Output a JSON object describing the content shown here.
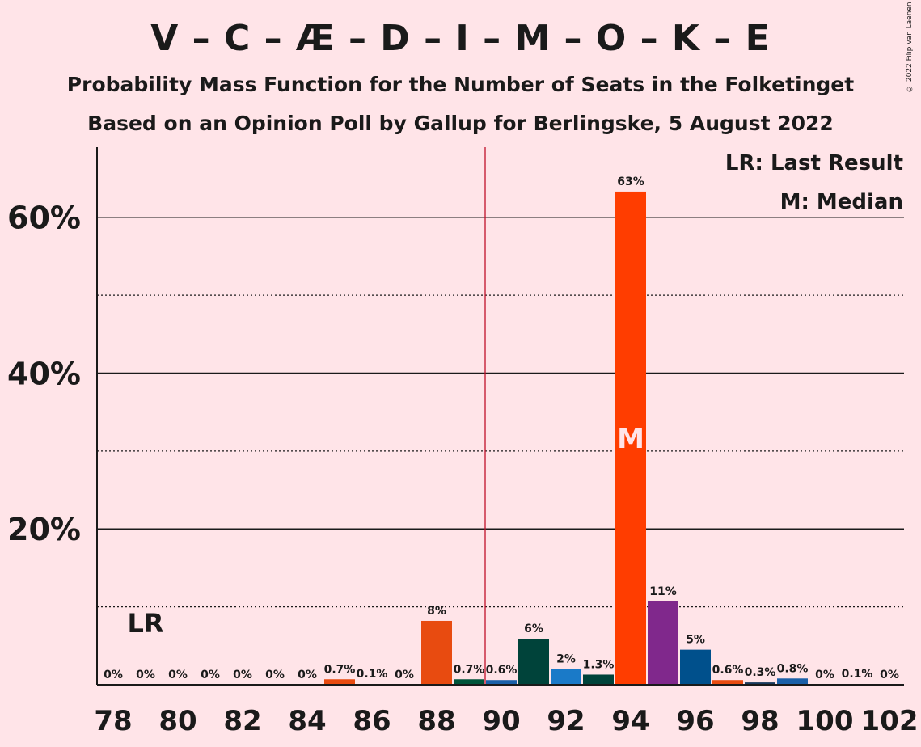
{
  "title": "V – C – Æ – D – I – M – O – K – E",
  "subtitle": "Probability Mass Function for the Number of Seats in the Folketinget",
  "subtitle2": "Based on an Opinion Poll by Gallup for Berlingske, 5 August 2022",
  "copyright": "© 2022 Filip van Laenen",
  "legend": {
    "last_result": "LR: Last Result",
    "median": "M: Median"
  },
  "markers": {
    "last_result_label": "LR",
    "median_label": "M"
  },
  "chart_data": {
    "type": "bar",
    "x": [
      78,
      79,
      80,
      81,
      82,
      83,
      84,
      85,
      86,
      87,
      88,
      89,
      90,
      91,
      92,
      93,
      94,
      95,
      96,
      97,
      98,
      99,
      100,
      101,
      102
    ],
    "values": [
      0,
      0,
      0,
      0,
      0,
      0,
      0,
      0.7,
      0.1,
      0,
      8.2,
      0.7,
      0.6,
      5.9,
      2.0,
      1.3,
      63.3,
      10.7,
      4.5,
      0.6,
      0.3,
      0.8,
      0,
      0.1,
      0
    ],
    "labels": [
      "0%",
      "0%",
      "0%",
      "0%",
      "0%",
      "0%",
      "0%",
      "0.7%",
      "0.1%",
      "0%",
      "8%",
      "0.7%",
      "0.6%",
      "6%",
      "2%",
      "1.3%",
      "63%",
      "11%",
      "5%",
      "0.6%",
      "0.3%",
      "0.8%",
      "0%",
      "0.1%",
      "0%"
    ],
    "colors": [
      "#E84B10",
      "#E84B10",
      "#E84B10",
      "#E84B10",
      "#E84B10",
      "#E84B10",
      "#E84B10",
      "#E84B10",
      "#E84B10",
      "#E84B10",
      "#E84B10",
      "#00543A",
      "#1A60A8",
      "#00433A",
      "#1A7AC8",
      "#00433A",
      "#FF3D00",
      "#80288C",
      "#00508C",
      "#E84B10",
      "#1A3A5C",
      "#1A60A8",
      "#E84B10",
      "#1A60A8",
      "#E84B10"
    ],
    "x_ticks": [
      "78",
      "80",
      "82",
      "84",
      "86",
      "88",
      "90",
      "92",
      "94",
      "96",
      "98",
      "100",
      "102"
    ],
    "y_ticks": [
      "20%",
      "40%",
      "60%"
    ],
    "ylim": [
      0,
      69
    ],
    "last_result_seat": 79,
    "median_seat": 94,
    "majority_seat": 89.5,
    "grid": true
  }
}
